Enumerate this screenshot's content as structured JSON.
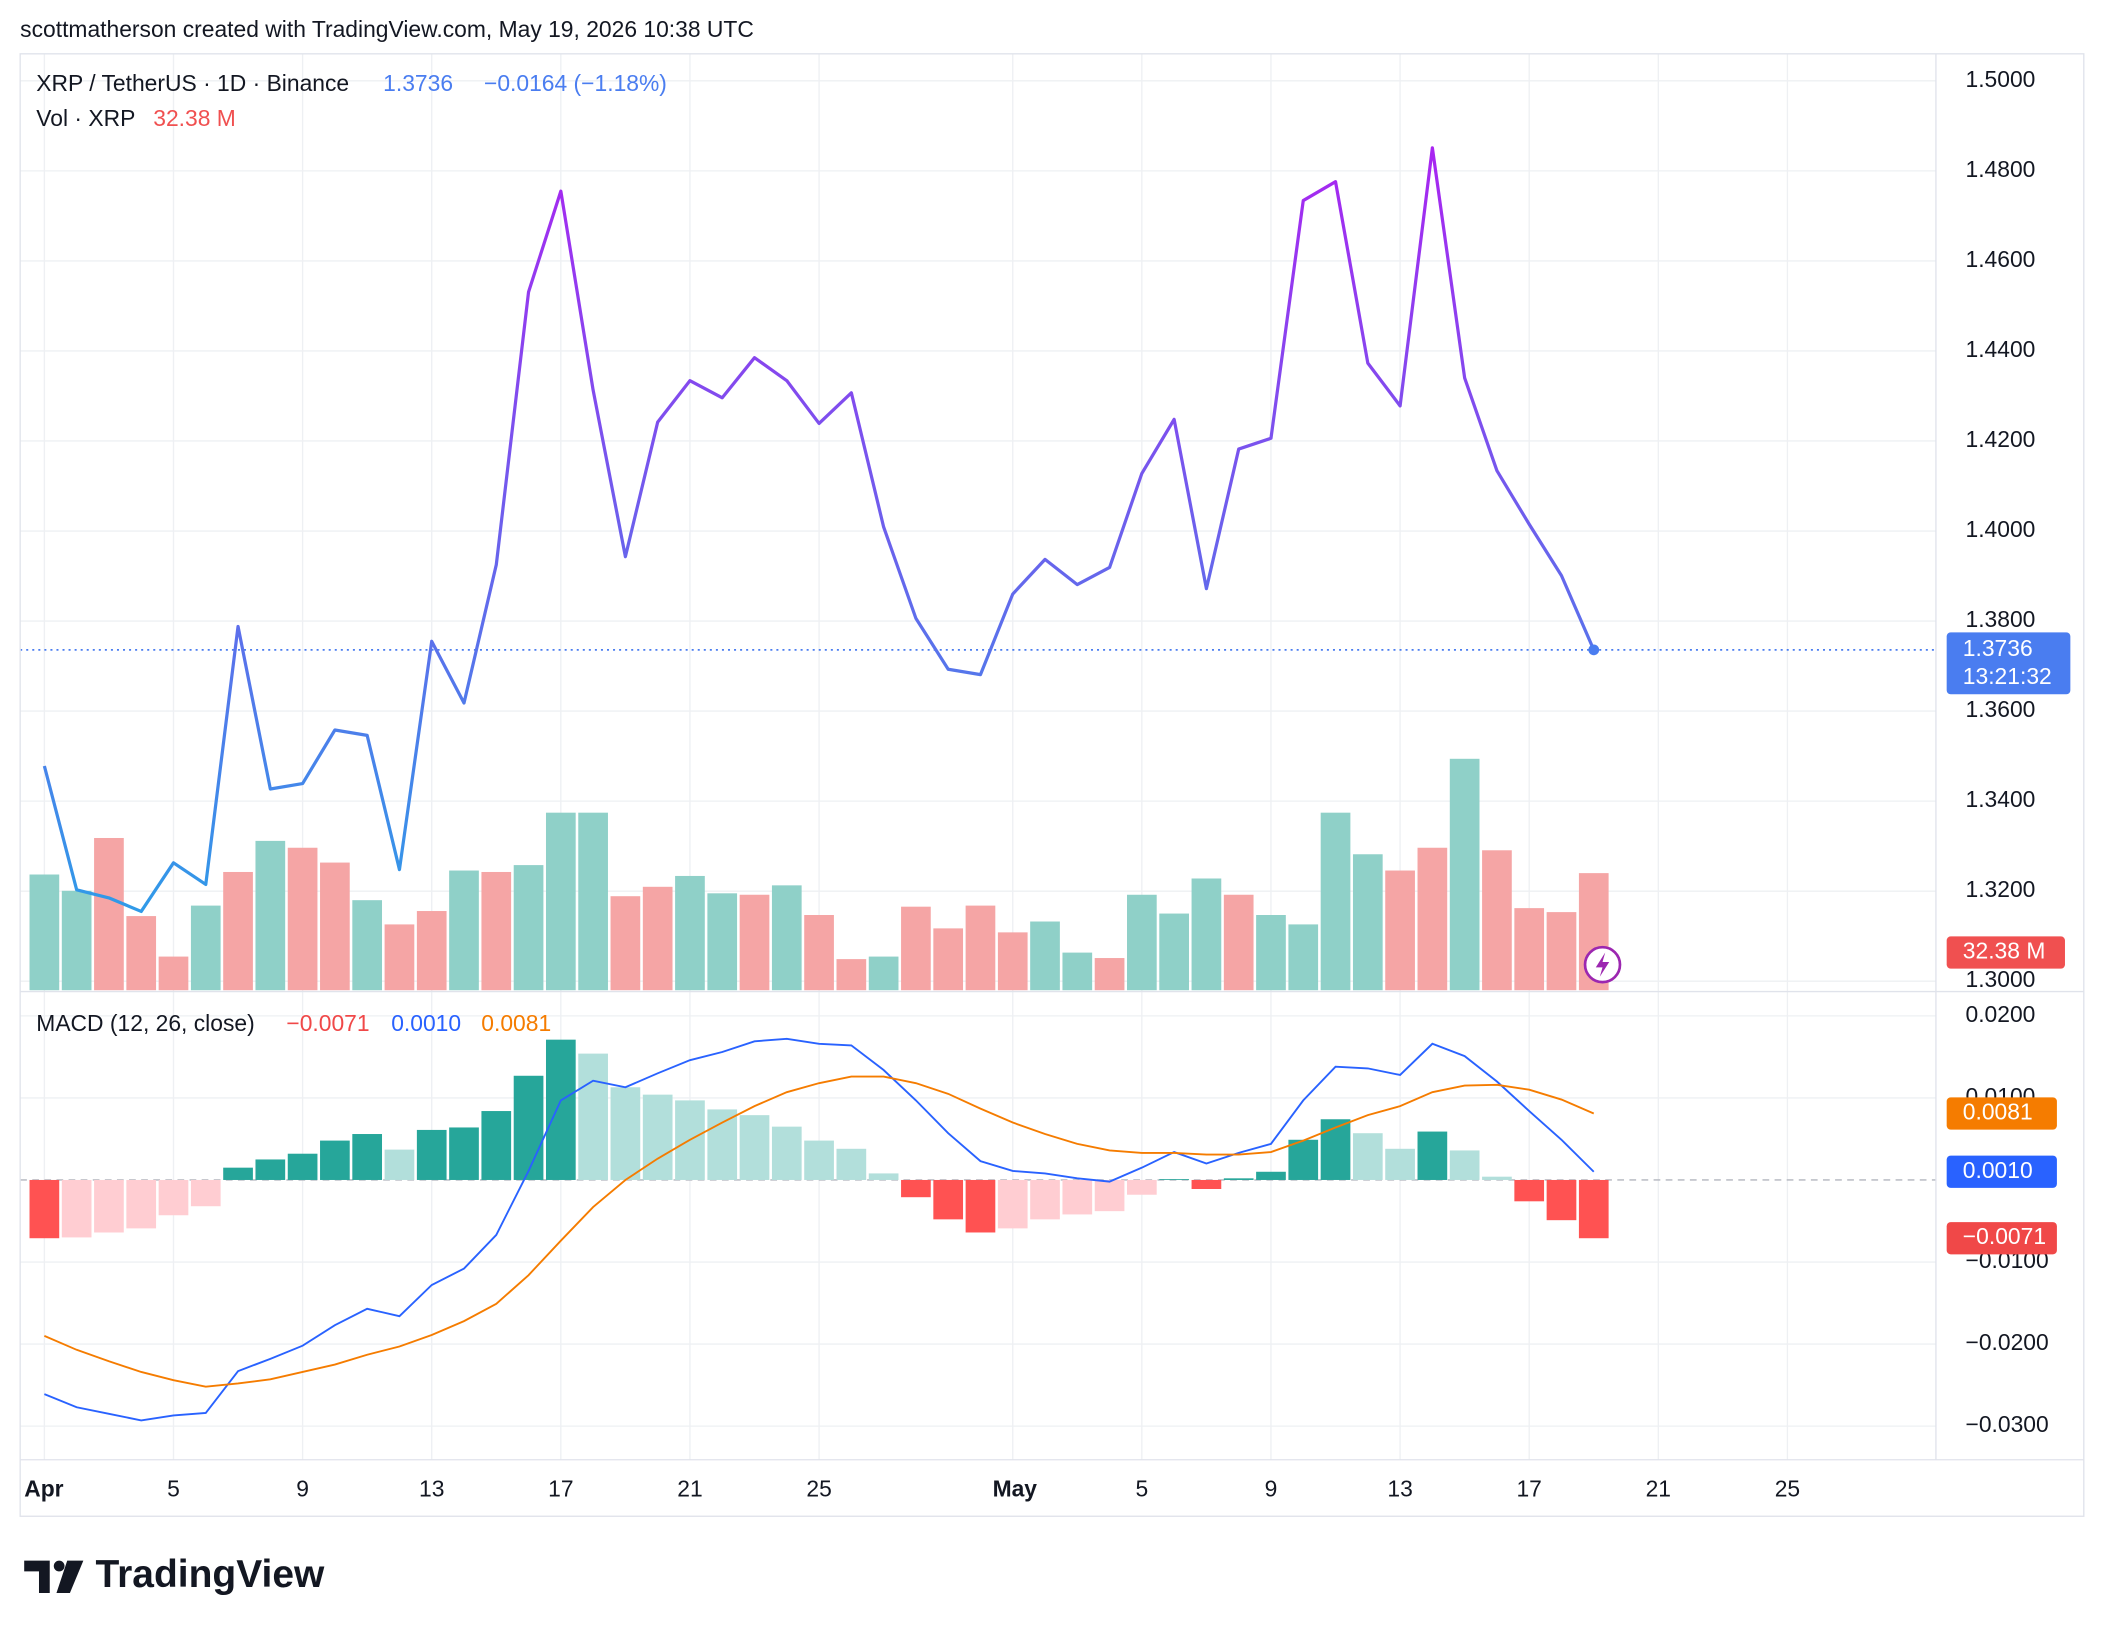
{
  "header": {
    "text": "scottmatherson created with TradingView.com, May 19, 2026 10:38 UTC"
  },
  "footer": {
    "brand": "TradingView"
  },
  "chart_data": [
    {
      "type": "line",
      "title": "XRP / TetherUS · 1D · Binance",
      "change_label": "−0.0164 (−1.18%)",
      "countdown": "13:21:32",
      "line_colors": [
        "#a925f1",
        "#2f9be8"
      ],
      "last_color": "#4a7df0",
      "x": [
        0,
        1,
        2,
        3,
        4,
        5,
        6,
        7,
        8,
        9,
        10,
        11,
        12,
        13,
        14,
        15,
        16,
        17,
        18,
        19,
        20,
        21,
        22,
        23,
        24,
        25,
        26,
        27,
        28,
        29,
        30,
        31,
        32,
        33,
        34,
        35,
        36,
        37,
        38,
        39,
        40,
        41,
        42,
        43,
        44,
        45,
        46,
        47,
        48
      ],
      "values": [
        1.3478,
        1.3203,
        1.3185,
        1.3155,
        1.3263,
        1.3215,
        1.3788,
        1.3427,
        1.3439,
        1.3558,
        1.3546,
        1.3248,
        1.3755,
        1.3618,
        1.3925,
        1.4531,
        1.4755,
        1.4313,
        1.3943,
        1.4242,
        1.4334,
        1.4296,
        1.4385,
        1.4334,
        1.4239,
        1.4307,
        1.4009,
        1.3806,
        1.3693,
        1.3681,
        1.386,
        1.3937,
        1.3881,
        1.3919,
        1.4128,
        1.4248,
        1.3872,
        1.4182,
        1.4206,
        1.4734,
        1.4776,
        1.4373,
        1.4278,
        1.4851,
        1.434,
        1.4134,
        1.4015,
        1.3901,
        1.3736
      ],
      "xlim": [
        -0.75,
        58.6
      ],
      "xticks": [
        {
          "value": 0,
          "label": "Apr"
        },
        {
          "value": 4,
          "label": "5"
        },
        {
          "value": 8,
          "label": "9"
        },
        {
          "value": 12,
          "label": "13"
        },
        {
          "value": 16,
          "label": "17"
        },
        {
          "value": 20,
          "label": "21"
        },
        {
          "value": 24,
          "label": "25"
        },
        {
          "value": 30,
          "label": "May"
        },
        {
          "value": 34,
          "label": "5"
        },
        {
          "value": 38,
          "label": "9"
        },
        {
          "value": 42,
          "label": "13"
        },
        {
          "value": 46,
          "label": "17"
        },
        {
          "value": 50,
          "label": "21"
        },
        {
          "value": 54,
          "label": "25"
        }
      ],
      "ylim": [
        1.298,
        1.506
      ],
      "yticks": [
        {
          "value": 1.3,
          "label": "1.3000"
        },
        {
          "value": 1.32,
          "label": "1.3200"
        },
        {
          "value": 1.34,
          "label": "1.3400"
        },
        {
          "value": 1.36,
          "label": "1.3600"
        },
        {
          "value": 1.38,
          "label": "1.3800"
        },
        {
          "value": 1.4,
          "label": "1.4000"
        },
        {
          "value": 1.42,
          "label": "1.4200"
        },
        {
          "value": 1.44,
          "label": "1.4400"
        },
        {
          "value": 1.46,
          "label": "1.4600"
        },
        {
          "value": 1.48,
          "label": "1.4800"
        },
        {
          "value": 1.5,
          "label": "1.5000"
        }
      ],
      "grid": true,
      "volume": {
        "name": "Vol · XRP",
        "last_label": "32.38 M",
        "last_color": "#f05050",
        "values": [
          32.0,
          27.5,
          42.1,
          20.5,
          9.3,
          23.4,
          32.7,
          41.3,
          39.4,
          35.3,
          24.9,
          18.2,
          21.9,
          33.1,
          32.7,
          34.6,
          49.1,
          49.1,
          26.0,
          28.6,
          31.6,
          26.8,
          26.4,
          29.0,
          20.8,
          8.6,
          9.3,
          23.1,
          17.1,
          23.4,
          16.0,
          19.0,
          10.4,
          8.9,
          26.4,
          21.2,
          30.9,
          26.4,
          20.8,
          18.2,
          49.1,
          37.6,
          33.1,
          39.4,
          64.0,
          38.7,
          22.7,
          21.6,
          32.38
        ],
        "colors": [
          "#8fd0c8",
          "#8fd0c8",
          "#f5a5a5",
          "#f5a5a5",
          "#f5a5a5",
          "#8fd0c8",
          "#f5a5a5",
          "#8fd0c8",
          "#f5a5a5",
          "#f5a5a5",
          "#8fd0c8",
          "#f5a5a5",
          "#f5a5a5",
          "#8fd0c8",
          "#f5a5a5",
          "#8fd0c8",
          "#8fd0c8",
          "#8fd0c8",
          "#f5a5a5",
          "#f5a5a5",
          "#8fd0c8",
          "#8fd0c8",
          "#f5a5a5",
          "#8fd0c8",
          "#f5a5a5",
          "#f5a5a5",
          "#8fd0c8",
          "#f5a5a5",
          "#f5a5a5",
          "#f5a5a5",
          "#f5a5a5",
          "#8fd0c8",
          "#8fd0c8",
          "#f5a5a5",
          "#8fd0c8",
          "#8fd0c8",
          "#8fd0c8",
          "#f5a5a5",
          "#8fd0c8",
          "#8fd0c8",
          "#8fd0c8",
          "#8fd0c8",
          "#f5a5a5",
          "#f5a5a5",
          "#8fd0c8",
          "#f5a5a5",
          "#f5a5a5",
          "#f5a5a5",
          "#f5a5a5"
        ]
      }
    },
    {
      "type": "macd",
      "title": "MACD (12, 26, close)",
      "ylim": [
        -0.0341,
        0.0228
      ],
      "yticks": [
        {
          "value": 0.02,
          "label": "0.0200"
        },
        {
          "value": 0.01,
          "label": "0.0100"
        },
        {
          "value": -0.01,
          "label": "−0.0100"
        },
        {
          "value": -0.02,
          "label": "−0.0200"
        },
        {
          "value": -0.03,
          "label": "−0.0300"
        }
      ],
      "grid": true,
      "series": [
        {
          "color": "#f04848",
          "last_label": "−0.0071",
          "colors": {
            "pos_up": "#26a69a",
            "pos_down": "#b2dfdb",
            "neg_down": "#ff5252",
            "neg_up": "#ffcdd2"
          },
          "values": [
            -0.0071,
            -0.007,
            -0.0064,
            -0.0059,
            -0.0043,
            -0.0032,
            0.0015,
            0.0025,
            0.0032,
            0.0048,
            0.0056,
            0.0037,
            0.0061,
            0.0064,
            0.0084,
            0.0127,
            0.0171,
            0.0154,
            0.0113,
            0.0104,
            0.0097,
            0.0086,
            0.0079,
            0.0065,
            0.0048,
            0.0038,
            0.0008,
            -0.0021,
            -0.0048,
            -0.0064,
            -0.0059,
            -0.0048,
            -0.0042,
            -0.0038,
            -0.0018,
            0.0001,
            -0.0011,
            0.0002,
            0.001,
            0.0049,
            0.0074,
            0.0057,
            0.0038,
            0.0059,
            0.0036,
            0.0004,
            -0.0026,
            -0.0049,
            -0.0071
          ]
        },
        {
          "color": "#2962ff",
          "last_label": "0.0010",
          "values": [
            -0.0261,
            -0.0277,
            -0.0285,
            -0.0293,
            -0.0287,
            -0.0284,
            -0.0233,
            -0.0218,
            -0.0202,
            -0.0177,
            -0.0157,
            -0.0166,
            -0.0128,
            -0.0108,
            -0.0067,
            0.0011,
            0.0097,
            0.0121,
            0.0113,
            0.013,
            0.0146,
            0.0156,
            0.0169,
            0.0172,
            0.0166,
            0.0164,
            0.0134,
            0.0097,
            0.0057,
            0.0023,
            0.0011,
            0.0008,
            0.0002,
            -0.0002,
            0.0015,
            0.0034,
            0.002,
            0.0033,
            0.0044,
            0.0097,
            0.0138,
            0.0136,
            0.0128,
            0.0166,
            0.0151,
            0.012,
            0.0084,
            0.0049,
            0.001
          ]
        },
        {
          "color": "#f57c00",
          "last_label": "0.0081",
          "values": [
            -0.019,
            -0.0207,
            -0.0221,
            -0.0234,
            -0.0244,
            -0.0252,
            -0.0248,
            -0.0243,
            -0.0234,
            -0.0225,
            -0.0213,
            -0.0203,
            -0.0189,
            -0.0172,
            -0.0151,
            -0.0116,
            -0.0074,
            -0.0033,
            0.0,
            0.0026,
            0.0049,
            0.007,
            0.009,
            0.0107,
            0.0118,
            0.0126,
            0.0126,
            0.0118,
            0.0105,
            0.0087,
            0.007,
            0.0056,
            0.0044,
            0.0036,
            0.0033,
            0.0033,
            0.0031,
            0.0031,
            0.0034,
            0.0048,
            0.0064,
            0.0079,
            0.009,
            0.0107,
            0.0115,
            0.0116,
            0.011,
            0.0098,
            0.0081
          ]
        }
      ]
    }
  ]
}
